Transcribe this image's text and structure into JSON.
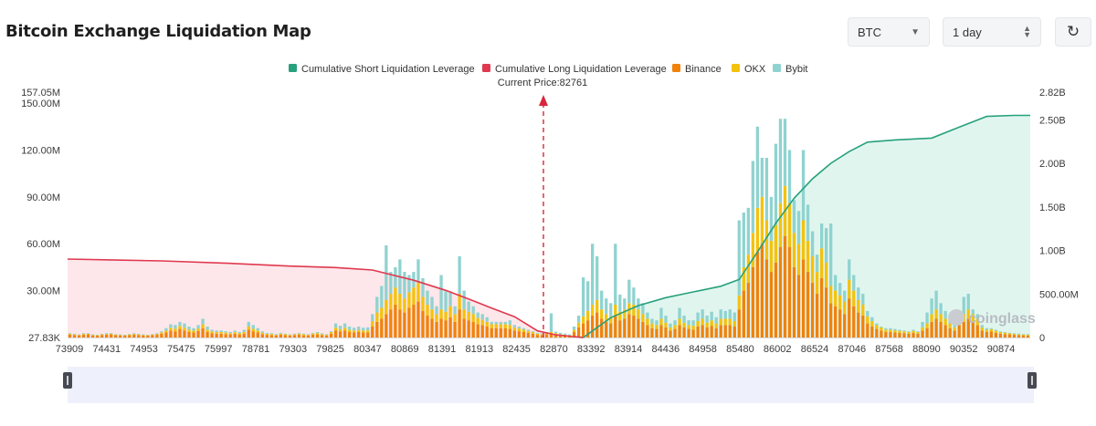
{
  "header": {
    "title": "Bitcoin Exchange Liquidation Map",
    "coin_select": {
      "value": "BTC"
    },
    "range_select": {
      "value": "1 day"
    },
    "refresh_icon": "refresh-icon"
  },
  "watermark": "coinglass",
  "chart_data": {
    "type": "bar",
    "title": "",
    "current_price_label": "Current Price:82761",
    "current_price": 82761,
    "colors": {
      "short_cumulative": "#26a17b",
      "long_cumulative": "#e0394f",
      "binance": "#f0820c",
      "okx": "#f4c20d",
      "bybit": "#8fd3d0"
    },
    "legend": [
      {
        "key": "short_cumulative",
        "label": "Cumulative Short Liquidation Leverage"
      },
      {
        "key": "long_cumulative",
        "label": "Cumulative Long Liquidation Leverage"
      },
      {
        "key": "binance",
        "label": "Binance"
      },
      {
        "key": "okx",
        "label": "OKX"
      },
      {
        "key": "bybit",
        "label": "Bybit"
      }
    ],
    "legend_position": "top-center",
    "x_tick_labels": [
      "73909",
      "74431",
      "74953",
      "75475",
      "75997",
      "78781",
      "79303",
      "79825",
      "80347",
      "80869",
      "81391",
      "81913",
      "82435",
      "82870",
      "83392",
      "83914",
      "84436",
      "84958",
      "85480",
      "86002",
      "86524",
      "87046",
      "87568",
      "88090",
      "90352",
      "90874"
    ],
    "y_left_ticks": [
      "27.83K",
      "30.00M",
      "60.00M",
      "90.00M",
      "120.00M",
      "150.00M",
      "157.05M"
    ],
    "y_left_tick_values": [
      0.02783,
      30,
      60,
      90,
      120,
      150,
      157.05
    ],
    "y_left_range": [
      0,
      157.05
    ],
    "y_left_unit": "M",
    "y_right_ticks": [
      "0",
      "500.00M",
      "1.00B",
      "1.50B",
      "2.00B",
      "2.50B",
      "2.82B"
    ],
    "y_right_tick_values": [
      0,
      0.5,
      1.0,
      1.5,
      2.0,
      2.5,
      2.82
    ],
    "y_right_range": [
      0,
      2.82
    ],
    "y_right_unit": "B",
    "bar_count": 210,
    "bars": {
      "binance": [
        1.8,
        1.6,
        1.4,
        1.8,
        2,
        1.4,
        1.2,
        1.6,
        1.8,
        2,
        1.5,
        1.4,
        1.2,
        1.5,
        1.8,
        1.6,
        1.4,
        1.2,
        1.5,
        1.8,
        2.5,
        3.2,
        4.5,
        4,
        5.5,
        4.5,
        3.5,
        3.2,
        4.2,
        6,
        3.5,
        2.8,
        2.5,
        2.5,
        2.2,
        2,
        2.4,
        2,
        2.5,
        5,
        4,
        3.2,
        2.2,
        1.7,
        1.6,
        1.3,
        1.8,
        1.5,
        1.2,
        1.5,
        1.8,
        1.4,
        1.3,
        1.8,
        2,
        1.5,
        1.3,
        2.5,
        4.5,
        3.8,
        4.5,
        3.5,
        3.2,
        3.5,
        3.2,
        3.3,
        7,
        10,
        12,
        15,
        18,
        21,
        18,
        16,
        19,
        21,
        23,
        17,
        14,
        12,
        10,
        12,
        11,
        13,
        10,
        18,
        12,
        11,
        10,
        8.5,
        8,
        7,
        6,
        6,
        6,
        6,
        5.5,
        4.5,
        4,
        3.5,
        3,
        2.5,
        1.7,
        1.6,
        2,
        2.5,
        2,
        1.5,
        1.3,
        1,
        3.5,
        6.5,
        9,
        11,
        14,
        16,
        12,
        10,
        9,
        14,
        11,
        12,
        15,
        14,
        12,
        10,
        8,
        6,
        5.5,
        8,
        6.5,
        4.5,
        5.5,
        8,
        6.5,
        5.5,
        5,
        7,
        8,
        6.5,
        7.5,
        6,
        8,
        8,
        8,
        7,
        18,
        30,
        35,
        45,
        55,
        60,
        50,
        42,
        48,
        58,
        65,
        58,
        45,
        40,
        50,
        42,
        35,
        28,
        38,
        32,
        22,
        20,
        18,
        15,
        25,
        20,
        16,
        14,
        9,
        7,
        5.5,
        4.5,
        3.5,
        3.5,
        3.2,
        3,
        2.8,
        2.5,
        3,
        2.5,
        4.5,
        6,
        10,
        12,
        10,
        8,
        6,
        4.5,
        8,
        10,
        12,
        10,
        8,
        4.5,
        3.5,
        3.8,
        3,
        2.5,
        2.2,
        2,
        1.7,
        1.5,
        1.4,
        1.3,
        1.4,
        1.5,
        1.6,
        1.5
      ],
      "okx": [
        0.5,
        0.4,
        0.3,
        0.5,
        0.4,
        0.3,
        0.3,
        0.4,
        0.5,
        0.4,
        0.3,
        0.3,
        0.3,
        0.4,
        0.5,
        0.4,
        0.3,
        0.3,
        0.4,
        0.5,
        0.8,
        1.2,
        1.8,
        1.6,
        2,
        1.8,
        1.5,
        1.2,
        1.6,
        2.4,
        1.4,
        1.1,
        1,
        1,
        0.9,
        0.8,
        1,
        0.8,
        1,
        2,
        1.6,
        1.3,
        0.9,
        0.7,
        0.6,
        0.5,
        0.7,
        0.6,
        0.5,
        0.6,
        0.7,
        0.6,
        0.5,
        0.7,
        0.8,
        0.6,
        0.5,
        1,
        1.8,
        1.5,
        1.8,
        1.4,
        1.3,
        1.4,
        1.3,
        1.3,
        3.5,
        6,
        7,
        9,
        10,
        11,
        10,
        9,
        10,
        11,
        12,
        9,
        7,
        6,
        5,
        6,
        5.5,
        7,
        5,
        10,
        6,
        5.5,
        5,
        4,
        3.5,
        3,
        2.5,
        2.5,
        2.5,
        2.5,
        2.5,
        2,
        1.8,
        1.5,
        1.2,
        1,
        0.7,
        0.6,
        0.8,
        1,
        0.8,
        0.6,
        0.5,
        0.4,
        1.5,
        3,
        4.5,
        6,
        7,
        8,
        6,
        5,
        4.5,
        7,
        5.5,
        6,
        7,
        7,
        6,
        5,
        4,
        3,
        2.5,
        4,
        3,
        2,
        2.5,
        4,
        3,
        2.5,
        2.5,
        3.5,
        4,
        3,
        3.5,
        3,
        4,
        4,
        4,
        3.5,
        9,
        15,
        18,
        22,
        28,
        30,
        25,
        20,
        24,
        28,
        32,
        28,
        22,
        20,
        25,
        20,
        17,
        14,
        19,
        16,
        11,
        10,
        9,
        8,
        12,
        10,
        8,
        7,
        4.5,
        3.5,
        2.5,
        2,
        1.5,
        1.5,
        1.4,
        1.3,
        1.2,
        1.1,
        1.3,
        1.1,
        2,
        3,
        5,
        6,
        5,
        4,
        3,
        2,
        4,
        5,
        6,
        5,
        4,
        2,
        1.5,
        1.6,
        1.3,
        1.1,
        1,
        0.9,
        0.7,
        0.6,
        0.6,
        0.5,
        0.6,
        0.6,
        0.7,
        0.6
      ],
      "bybit": [
        0.5,
        0.4,
        0.3,
        0.5,
        0.4,
        0.3,
        0.3,
        0.4,
        0.5,
        0.4,
        0.3,
        0.3,
        0.3,
        0.4,
        0.5,
        0.4,
        0.3,
        0.3,
        0.4,
        0.5,
        0.7,
        1.6,
        2.2,
        2.4,
        2.5,
        2.7,
        2,
        1.6,
        2.2,
        3.6,
        2.1,
        1.1,
        1,
        1,
        0.9,
        0.8,
        1,
        0.8,
        1.5,
        3,
        2.4,
        1.5,
        0.9,
        0.6,
        0.6,
        0.5,
        0.5,
        0.4,
        0.3,
        0.4,
        0.5,
        0.5,
        0.4,
        0.5,
        0.7,
        0.6,
        0.4,
        0.5,
        2.7,
        2.2,
        2.7,
        2.1,
        1.8,
        2.1,
        1.8,
        1.9,
        4.5,
        10,
        14,
        35,
        14,
        13,
        22,
        17,
        11,
        10,
        15,
        12,
        9,
        8,
        5,
        22,
        13,
        9.5,
        5,
        24,
        12,
        6.5,
        5,
        3.5,
        3.5,
        3,
        1.5,
        1.5,
        1.5,
        1.5,
        3,
        1.5,
        1.2,
        1,
        0.8,
        0.5,
        0.6,
        0.4,
        0.7,
        12,
        1,
        0.9,
        0.7,
        0.6,
        2,
        4.5,
        25,
        19,
        39,
        28,
        12,
        10,
        8.5,
        39,
        11,
        7,
        15,
        11,
        7,
        7,
        4,
        3,
        3,
        7,
        4.5,
        2.5,
        3,
        7,
        4.5,
        3,
        3.5,
        5.5,
        6,
        4.5,
        5.5,
        4,
        6,
        5,
        6,
        5.5,
        48,
        35,
        30,
        46,
        52,
        25,
        40,
        28,
        52,
        54,
        43,
        34,
        21,
        21,
        45,
        23,
        16,
        11,
        16,
        22,
        40,
        10,
        8,
        7,
        13,
        10,
        8,
        7,
        3.5,
        2.5,
        1,
        0.5,
        1,
        1,
        0.9,
        0.7,
        0.5,
        0.4,
        0.7,
        0.4,
        3.5,
        7,
        10,
        12,
        7,
        5,
        4,
        1.5,
        5,
        11,
        10,
        3,
        3,
        1.5,
        1,
        0.6,
        0.7,
        0.4,
        0.3,
        0.1,
        0.3,
        0.4,
        0.2,
        0.4,
        0.3,
        0.3,
        0.2,
        0.4
      ]
    },
    "series": [
      {
        "name": "Cumulative Long Liquidation Leverage",
        "axis": "right",
        "unit": "B",
        "points": [
          [
            0,
            0.902
          ],
          [
            20,
            0.881
          ],
          [
            35,
            0.852
          ],
          [
            48,
            0.821
          ],
          [
            58,
            0.804
          ],
          [
            66,
            0.776
          ],
          [
            75,
            0.658
          ],
          [
            82,
            0.542
          ],
          [
            88,
            0.422
          ],
          [
            92,
            0.339
          ],
          [
            97,
            0.239
          ],
          [
            102,
            0.077
          ],
          [
            106,
            0.03
          ],
          [
            110,
            0.01
          ],
          [
            112,
            0
          ]
        ]
      },
      {
        "name": "Cumulative Short Liquidation Leverage",
        "axis": "right",
        "unit": "B",
        "points": [
          [
            112,
            0
          ],
          [
            118,
            0.229
          ],
          [
            124,
            0.367
          ],
          [
            130,
            0.458
          ],
          [
            136,
            0.524
          ],
          [
            142,
            0.589
          ],
          [
            146,
            0.667
          ],
          [
            150,
            0.984
          ],
          [
            154,
            1.313
          ],
          [
            158,
            1.601
          ],
          [
            162,
            1.824
          ],
          [
            166,
            2.002
          ],
          [
            170,
            2.136
          ],
          [
            174,
            2.246
          ],
          [
            180,
            2.271
          ],
          [
            188,
            2.292
          ],
          [
            194,
            2.417
          ],
          [
            200,
            2.541
          ],
          [
            206,
            2.553
          ],
          [
            209,
            2.553
          ]
        ]
      }
    ]
  }
}
